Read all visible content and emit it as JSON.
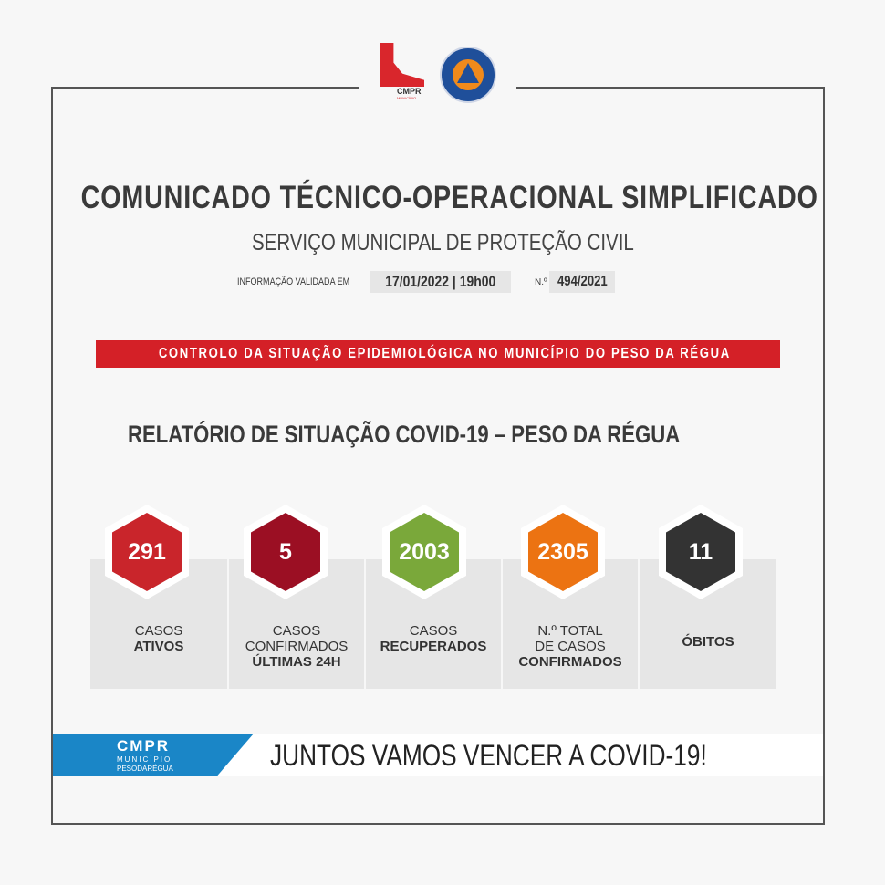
{
  "logos": {
    "municipio_text": "CMPR MUNICÍPIO PESODARÉGUA",
    "protecao_civil_text": "PROTECÇÃO CIVIL PESO DA RÉGUA"
  },
  "header": {
    "title": "COMUNICADO TÉCNICO-OPERACIONAL SIMPLIFICADO",
    "subtitle": "SERVIÇO MUNICIPAL DE PROTEÇÃO CIVIL",
    "validated_label": "INFORMAÇÃO VALIDADA EM",
    "validated_value": "17/01/2022 | 19h00",
    "number_label": "N.º",
    "number_value": "494/2021"
  },
  "banner": {
    "text": "CONTROLO DA SITUAÇÃO EPIDEMIOLÓGICA NO MUNICÍPIO DO PESO DA RÉGUA",
    "color": "#d42027"
  },
  "report_title": "RELATÓRIO DE SITUAÇÃO COVID-19 – PESO DA RÉGUA",
  "stats": [
    {
      "value": "291",
      "line1": "CASOS",
      "line2": "",
      "bold": "ATIVOS",
      "color": "#c9252b"
    },
    {
      "value": "5",
      "line1": "CASOS",
      "line2": "CONFIRMADOS",
      "bold": "ÚLTIMAS 24H",
      "color": "#9b0f23"
    },
    {
      "value": "2003",
      "line1": "CASOS",
      "line2": "",
      "bold": "RECUPERADOS",
      "color": "#7aa83a"
    },
    {
      "value": "2305",
      "line1": "N.º TOTAL",
      "line2": "DE CASOS",
      "bold": "CONFIRMADOS",
      "color": "#ec7312"
    },
    {
      "value": "11",
      "line1": "",
      "line2": "",
      "bold": "ÓBITOS",
      "color": "#333333"
    }
  ],
  "footer": {
    "logo_main": "CMPR",
    "logo_sub1": "MUNICÍPIO",
    "logo_sub2": "PESODARÉGUA",
    "slogan": "JUNTOS VAMOS VENCER A COVID-19!",
    "color": "#1a86c7"
  }
}
